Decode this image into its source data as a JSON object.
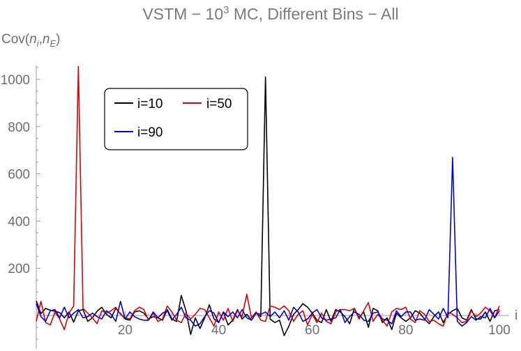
{
  "chart_data": {
    "type": "line",
    "title": "VSTM - 10³ MC, Different Bins - All",
    "title_parts": [
      "VSTM − 10",
      "3",
      " MC, Different Bins − All"
    ],
    "ylabel": "Cov(n_i, n_E)",
    "ylabel_parts": [
      "Cov(",
      "n",
      "i",
      ",",
      "n",
      "E",
      ")"
    ],
    "xlabel": "i",
    "xlim": [
      1,
      100
    ],
    "ylim": [
      -140,
      1060
    ],
    "x_ticks": [
      20,
      40,
      60,
      80,
      100
    ],
    "y_ticks": [
      200,
      400,
      600,
      800,
      1000
    ],
    "grid": false,
    "legend_position": "top-left",
    "series": [
      {
        "name": "i=10",
        "color": "#000000",
        "values": [
          62,
          8,
          30,
          22,
          18,
          12,
          -10,
          15,
          -28,
          20,
          25,
          -25,
          -10,
          18,
          35,
          5,
          -10,
          30,
          8,
          -15,
          -20,
          15,
          20,
          10,
          -15,
          -5,
          -10,
          -20,
          25,
          -15,
          -25,
          85,
          20,
          -80,
          -10,
          -55,
          -10,
          45,
          -15,
          -30,
          15,
          -40,
          -20,
          25,
          -15,
          5,
          -20,
          10,
          -5,
          1010,
          -15,
          -30,
          -20,
          -85,
          -45,
          5,
          25,
          50,
          35,
          10,
          -20,
          -30,
          25,
          -25,
          25,
          15,
          -5,
          -35,
          30,
          -10,
          15,
          -50,
          30,
          20,
          -30,
          -10,
          -60,
          10,
          -10,
          -25,
          -10,
          20,
          10,
          -15,
          -35,
          -5,
          15,
          -30,
          5,
          20,
          30,
          -10,
          -20,
          25,
          -15,
          -15,
          15,
          -25,
          20,
          25
        ]
      },
      {
        "name": "i=50",
        "color": "#e00000",
        "values": [
          -25,
          60,
          -30,
          -40,
          15,
          -15,
          -60,
          10,
          40,
          1055,
          30,
          10,
          -10,
          -35,
          20,
          10,
          20,
          35,
          5,
          -10,
          -15,
          20,
          35,
          25,
          -20,
          10,
          -25,
          -15,
          40,
          15,
          -20,
          -30,
          10,
          -15,
          5,
          30,
          25,
          -10,
          -45,
          15,
          -20,
          30,
          -25,
          20,
          -5,
          90,
          -10,
          15,
          -20,
          -25,
          40,
          35,
          25,
          40,
          20,
          -25,
          5,
          20,
          -40,
          5,
          -30,
          10,
          -25,
          -35,
          15,
          25,
          25,
          20,
          30,
          -15,
          20,
          55,
          -25,
          5,
          -20,
          -45,
          15,
          30,
          25,
          35,
          -15,
          -30,
          20,
          5,
          -25,
          -20,
          -35,
          -45,
          15,
          5,
          -10,
          -30,
          -25,
          20,
          -5,
          10,
          35,
          20,
          -10,
          40
        ]
      },
      {
        "name": "i=90",
        "color": "#0000e0",
        "values": [
          50,
          -5,
          -25,
          20,
          25,
          -10,
          35,
          -10,
          10,
          25,
          -10,
          -5,
          10,
          -5,
          -15,
          20,
          5,
          -25,
          60,
          -15,
          15,
          -5,
          -15,
          -20,
          -20,
          15,
          -10,
          10,
          20,
          -20,
          5,
          35,
          -10,
          -20,
          -45,
          -35,
          -5,
          20,
          10,
          -30,
          15,
          -5,
          15,
          -10,
          25,
          -10,
          -20,
          10,
          5,
          15,
          -5,
          15,
          -10,
          20,
          -20,
          35,
          15,
          -25,
          -15,
          10,
          25,
          -10,
          -20,
          -15,
          -10,
          25,
          -30,
          -5,
          15,
          5,
          -20,
          -25,
          10,
          15,
          -15,
          -20,
          -35,
          20,
          -5,
          15,
          15,
          -20,
          -15,
          -20,
          25,
          5,
          -15,
          30,
          -10,
          670,
          -25,
          -45,
          -30,
          -5,
          -20,
          -5,
          -10,
          30,
          -10,
          20
        ]
      }
    ]
  }
}
